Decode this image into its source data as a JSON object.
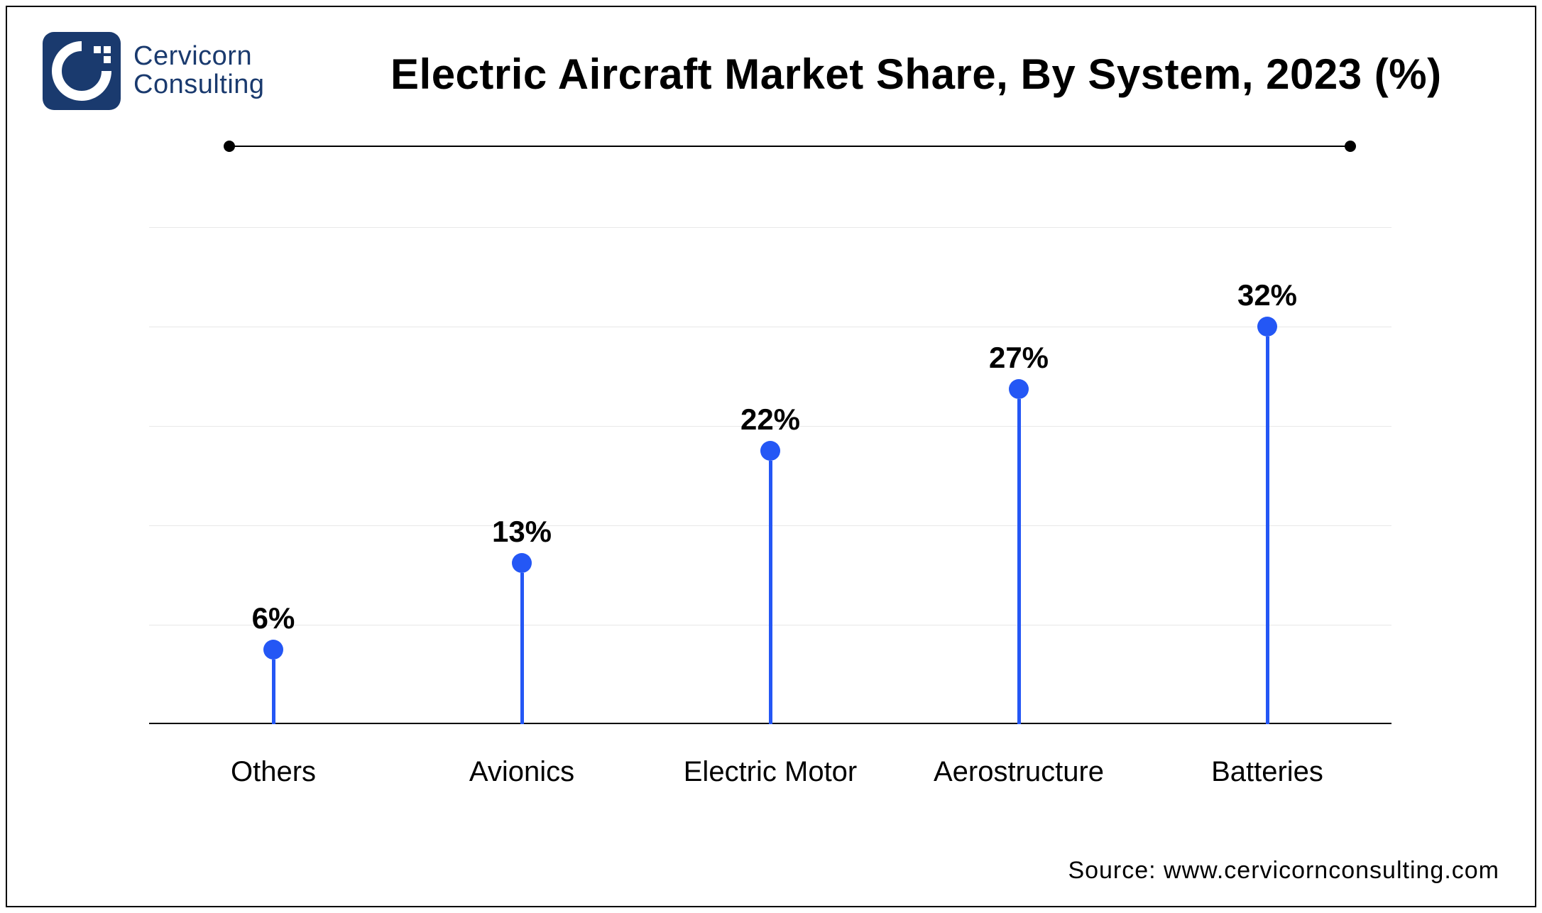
{
  "logo": {
    "line1": "Cervicorn",
    "line2": "Consulting",
    "icon_bg": "#1a3a6e",
    "icon_fg": "#ffffff"
  },
  "title": "Electric Aircraft Market Share, By System, 2023 (%)",
  "source": "Source: www.cervicornconsulting.com",
  "chart": {
    "type": "lollipop",
    "y_max": 40,
    "grid_positions_pct": [
      0,
      20,
      40,
      60,
      80
    ],
    "grid_color": "#e8e8e8",
    "axis_color": "#000000",
    "stem_color": "#2457f5",
    "dot_color": "#2457f5",
    "stem_width": 5,
    "dot_size": 28,
    "label_fontsize": 42,
    "category_fontsize": 40,
    "background": "#ffffff",
    "categories": [
      "Others",
      "Avionics",
      "Electric Motor",
      "Aerostructure",
      "Batteries"
    ],
    "values": [
      6,
      13,
      22,
      27,
      32
    ],
    "value_labels": [
      "6%",
      "13%",
      "22%",
      "27%",
      "32%"
    ],
    "x_positions_pct": [
      10,
      30,
      50,
      70,
      90
    ]
  }
}
